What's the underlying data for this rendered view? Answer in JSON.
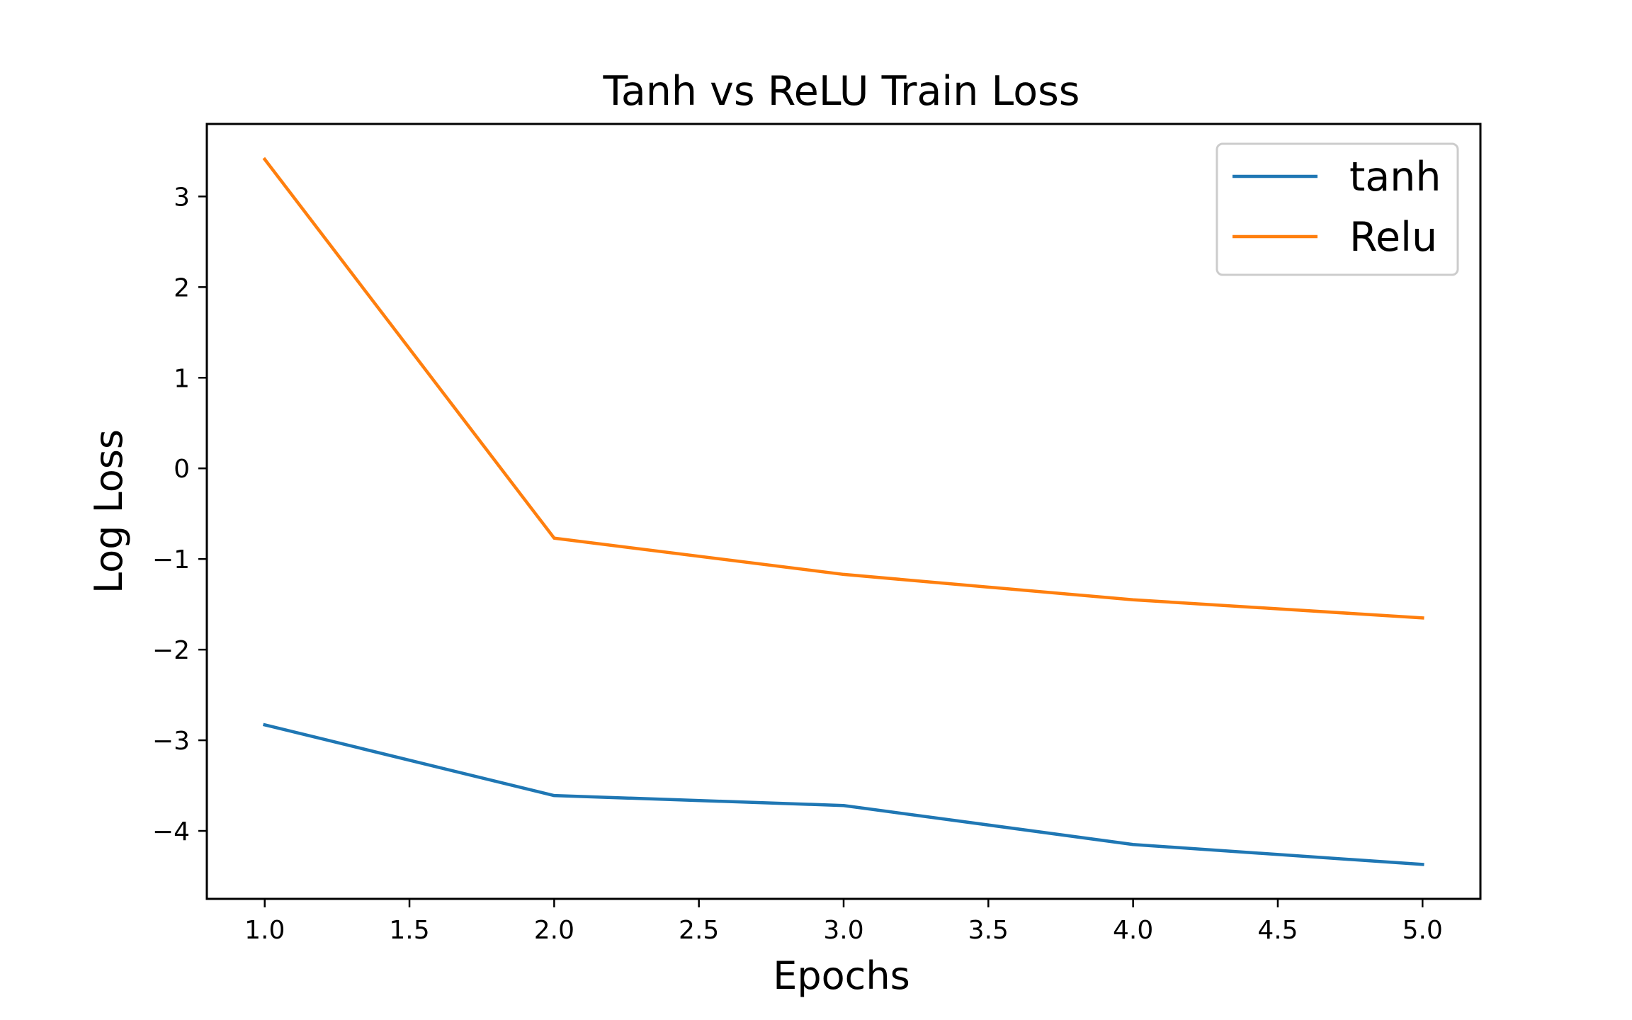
{
  "chart_data": {
    "type": "line",
    "title": "Tanh vs ReLU Train Loss",
    "xlabel": "Epochs",
    "ylabel": "Log Loss",
    "x": [
      1,
      2,
      3,
      4,
      5
    ],
    "xlim": [
      0.8,
      5.2
    ],
    "ylim": [
      -4.75,
      3.8
    ],
    "xticks": [
      1.0,
      1.5,
      2.0,
      2.5,
      3.0,
      3.5,
      4.0,
      4.5,
      5.0
    ],
    "xtick_labels": [
      "1.0",
      "1.5",
      "2.0",
      "2.5",
      "3.0",
      "3.5",
      "4.0",
      "4.5",
      "5.0"
    ],
    "yticks": [
      3,
      2,
      1,
      0,
      -1,
      -2,
      -3,
      -4
    ],
    "ytick_labels": [
      "3",
      "2",
      "1",
      "0",
      "−1",
      "−2",
      "−3",
      "−4"
    ],
    "grid": false,
    "legend_position": "top-right",
    "series": [
      {
        "name": "tanh",
        "color": "#1f77b4",
        "values": [
          -2.83,
          -3.61,
          -3.72,
          -4.15,
          -4.37
        ]
      },
      {
        "name": "Relu",
        "color": "#ff7f0e",
        "values": [
          3.41,
          -0.77,
          -1.17,
          -1.45,
          -1.65
        ]
      }
    ]
  }
}
